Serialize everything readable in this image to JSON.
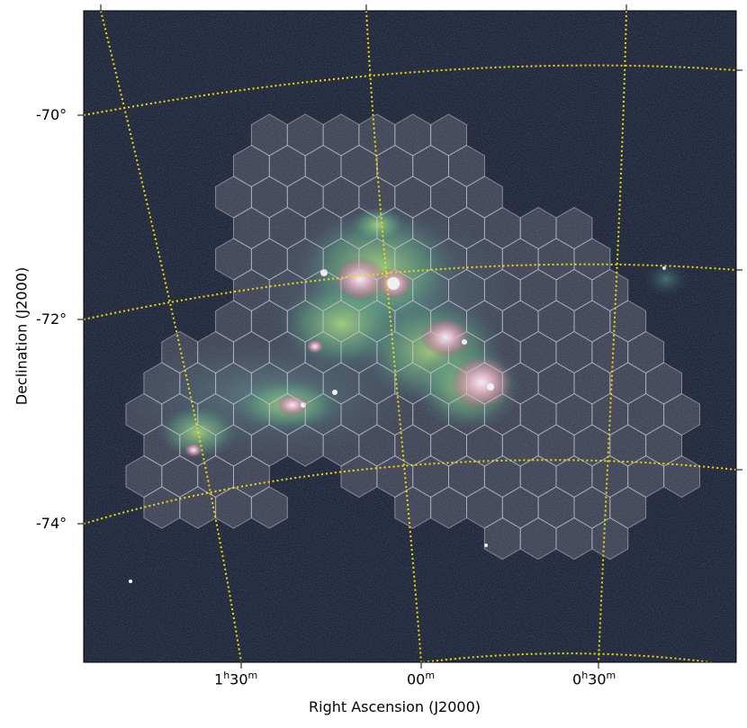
{
  "axes": {
    "xlabel": "Right Ascension (J2000)",
    "ylabel": "Declination (J2000)",
    "x_ticks": [
      {
        "hour": "1",
        "hour_unit": "h",
        "min": "30",
        "min_unit": "m"
      },
      {
        "hour": "",
        "hour_unit": "",
        "min": "00",
        "min_unit": "m"
      },
      {
        "hour": "0",
        "hour_unit": "h",
        "min": "30",
        "min_unit": "m"
      }
    ],
    "y_ticks": [
      "-70°",
      "-72°",
      "-74°"
    ]
  },
  "image": {
    "background_color": "#0c1020",
    "grid_color": "#e8e000",
    "hex_overlay_color": "#b8b8c0"
  }
}
